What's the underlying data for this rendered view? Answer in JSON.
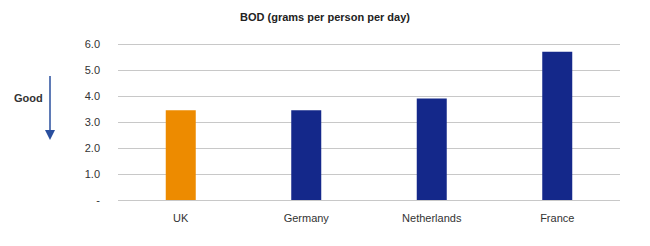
{
  "chart_data": {
    "type": "bar",
    "title": "BOD (grams per person per day)",
    "annotation": "Good",
    "categories": [
      "UK",
      "Germany",
      "Netherlands",
      "France"
    ],
    "values": [
      3.45,
      3.45,
      3.9,
      5.7
    ],
    "colors": [
      "#ed8b00",
      "#14288a",
      "#14288a",
      "#14288a"
    ],
    "ylim": [
      0,
      6
    ],
    "yticks": [
      {
        "value": 0,
        "label": "-"
      },
      {
        "value": 1,
        "label": "1.0"
      },
      {
        "value": 2,
        "label": "2.0"
      },
      {
        "value": 3,
        "label": "3.0"
      },
      {
        "value": 4,
        "label": "4.0"
      },
      {
        "value": 5,
        "label": "5.0"
      },
      {
        "value": 6,
        "label": "6.0"
      }
    ],
    "grid": true
  }
}
